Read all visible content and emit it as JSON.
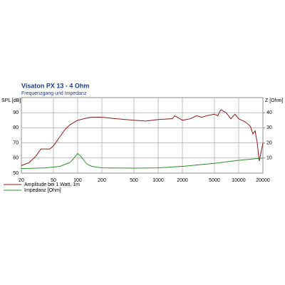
{
  "chart_data": {
    "type": "line",
    "title": "Visaton PX 13 - 4 Ohm",
    "subtitle": "Frequenzgang und Impedanz",
    "y_label": "SPL [dB]",
    "y2_label": "Z [Ohm]",
    "log_x": true,
    "grid": true,
    "xlim": [
      20,
      20000
    ],
    "xticks": [
      20,
      50,
      100,
      200,
      500,
      1000,
      2000,
      5000,
      10000,
      20000
    ],
    "ylim": [
      50,
      100
    ],
    "yticks": [
      50,
      60,
      70,
      80,
      90
    ],
    "y2lim": [
      0,
      50
    ],
    "y2ticks": [
      10,
      20,
      30,
      40
    ],
    "series": [
      {
        "name": "Amplitude bei 1 Watt, 1m",
        "color": "#8b1a1a",
        "x": [
          20,
          25,
          30,
          35,
          40,
          45,
          50,
          60,
          70,
          80,
          100,
          130,
          150,
          200,
          300,
          500,
          700,
          1000,
          1500,
          1600,
          2000,
          2500,
          3000,
          3500,
          4000,
          5000,
          5500,
          6000,
          7000,
          8000,
          9000,
          10000,
          12000,
          14000,
          15000,
          16000,
          17000,
          18000,
          19000,
          20000
        ],
        "values": [
          55,
          57,
          61,
          66,
          66,
          66,
          68,
          74,
          79,
          82,
          85,
          86.5,
          87,
          87,
          86,
          85,
          84.5,
          85.5,
          86,
          88,
          85,
          86,
          88,
          87,
          88,
          89,
          88,
          92,
          90,
          86,
          89,
          86,
          84,
          81,
          76,
          78,
          70,
          58,
          64,
          70
        ]
      },
      {
        "name": "Impedanz [Ohm]",
        "color": "#2e8b2e",
        "axis": "y2",
        "x": [
          20,
          40,
          60,
          80,
          90,
          100,
          110,
          130,
          150,
          200,
          500,
          1000,
          2000,
          5000,
          10000,
          20000
        ],
        "values": [
          3,
          3.5,
          4.5,
          7,
          10,
          13,
          11,
          6,
          4.5,
          3.5,
          3.3,
          3.5,
          4.5,
          6.5,
          8.5,
          10
        ]
      }
    ]
  }
}
